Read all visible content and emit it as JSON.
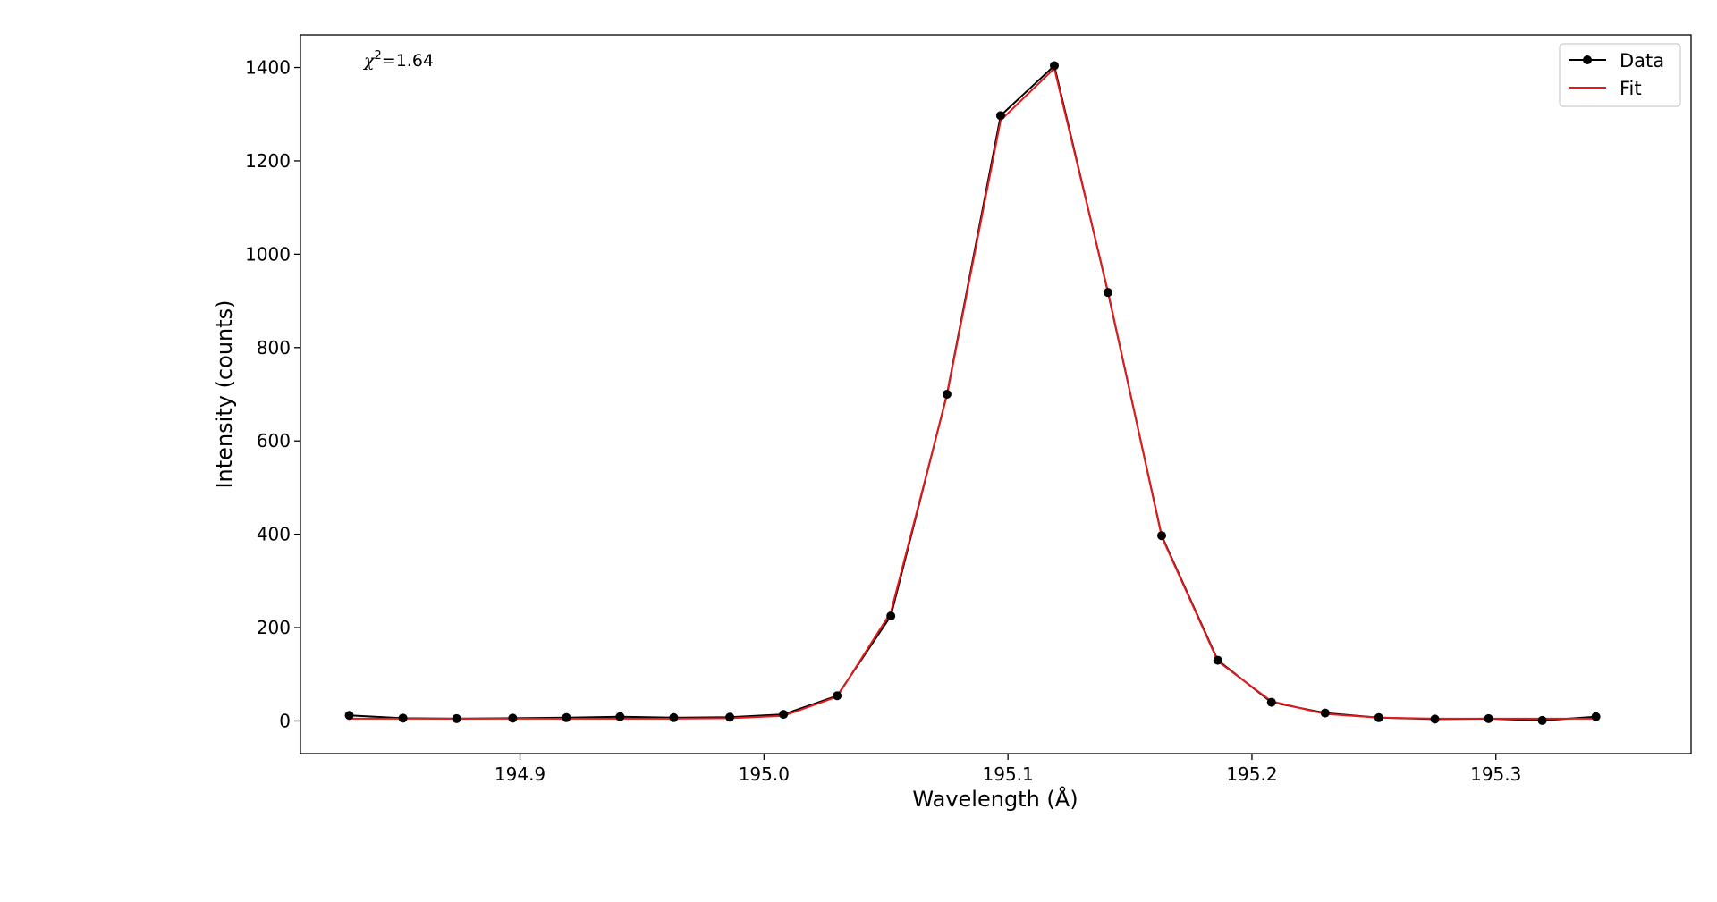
{
  "chart_data": {
    "type": "line",
    "title": "",
    "xlabel": "Wavelength (Å)",
    "ylabel": "Intensity (counts)",
    "xlim": [
      194.81,
      195.38
    ],
    "ylim": [
      -70,
      1470
    ],
    "x_ticks": [
      194.9,
      195.0,
      195.1,
      195.2,
      195.3
    ],
    "x_tick_labels": [
      "194.9",
      "195.0",
      "195.1",
      "195.2",
      "195.3"
    ],
    "y_ticks": [
      0,
      200,
      400,
      600,
      800,
      1000,
      1200,
      1400
    ],
    "y_tick_labels": [
      "0",
      "200",
      "400",
      "600",
      "800",
      "1000",
      "1200",
      "1400"
    ],
    "grid": false,
    "legend_position": "top-right",
    "annotation": {
      "chi_symbol": "χ",
      "superscript": "2",
      "value_text": "=1.64"
    },
    "x": [
      194.83,
      194.852,
      194.874,
      194.897,
      194.919,
      194.941,
      194.963,
      194.986,
      195.008,
      195.03,
      195.052,
      195.075,
      195.097,
      195.119,
      195.141,
      195.163,
      195.186,
      195.208,
      195.23,
      195.252,
      195.275,
      195.297,
      195.319,
      195.341
    ],
    "series": [
      {
        "name": "Data",
        "color": "#000000",
        "marker": "circle",
        "values": [
          12,
          6,
          5,
          6,
          7,
          9,
          7,
          8,
          14,
          54,
          225,
          700,
          1297,
          1404,
          918,
          397,
          130,
          40,
          17,
          7,
          4,
          5,
          1,
          9
        ]
      },
      {
        "name": "Fit",
        "color": "#e41a1c",
        "marker": "none",
        "values": [
          5,
          5,
          5,
          5,
          5,
          5,
          5,
          6,
          11,
          52,
          233,
          698,
          1287,
          1398,
          920,
          395,
          128,
          42,
          15,
          7,
          5,
          5,
          5,
          5
        ]
      }
    ]
  }
}
